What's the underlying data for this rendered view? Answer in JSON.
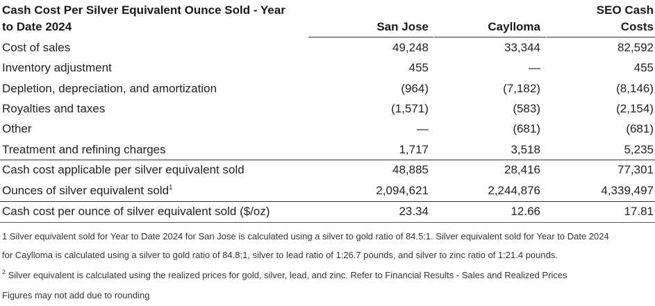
{
  "table": {
    "title_line1": "Cash Cost Per Silver Equivalent Ounce Sold - Year",
    "title_line2": "to Date 2024",
    "col1_header": "San Jose",
    "col2_header": "Caylloma",
    "col3_header_line1": "SEO Cash",
    "col3_header_line2": "Costs",
    "rows": [
      {
        "label": "Cost of sales",
        "sup": "",
        "c1": "49,248",
        "c2": "33,344",
        "c3": "82,592"
      },
      {
        "label": "Inventory adjustment",
        "sup": "",
        "c1": "455",
        "c2": "—",
        "c3": "455"
      },
      {
        "label": "Depletion, depreciation, and amortization",
        "sup": "",
        "c1": "(964)",
        "c2": "(7,182)",
        "c3": "(8,146)"
      },
      {
        "label": "Royalties and taxes",
        "sup": "",
        "c1": "(1,571)",
        "c2": "(583)",
        "c3": "(2,154)"
      },
      {
        "label": "Other",
        "sup": "",
        "c1": "—",
        "c2": "(681)",
        "c3": "(681)"
      },
      {
        "label": "Treatment and refining charges",
        "sup": "",
        "c1": "1,717",
        "c2": "3,518",
        "c3": "5,235"
      },
      {
        "label": "Cash cost applicable per silver equivalent sold",
        "sup": "",
        "c1": "48,885",
        "c2": "28,416",
        "c3": "77,301"
      },
      {
        "label": "Ounces of silver equivalent sold",
        "sup": "1",
        "c1": "2,094,621",
        "c2": "2,244,876",
        "c3": "4,339,497"
      },
      {
        "label": "Cash cost per ounce of silver equivalent sold ($/oz)",
        "sup": "",
        "c1": "23.34",
        "c2": "12.66",
        "c3": "17.81"
      }
    ]
  },
  "footnotes": {
    "note1_line1": "1 Silver equivalent sold for Year to Date 2024 for San Jose is calculated using a silver to gold ratio of 84.5:1. Silver equivalent sold for Year to Date 2024",
    "note1_line2": "for Caylloma is calculated using a silver to gold ratio of 84.8:1, silver to lead ratio of 1:26.7 pounds, and silver to zinc ratio of 1:21.4 pounds.",
    "note2_marker": "2",
    "note2_text": " Silver equivalent is calculated using the realized prices for gold, silver, lead, and zinc. Refer to Financial Results - Sales and Realized Prices",
    "note3": "Figures may not add due to rounding"
  }
}
